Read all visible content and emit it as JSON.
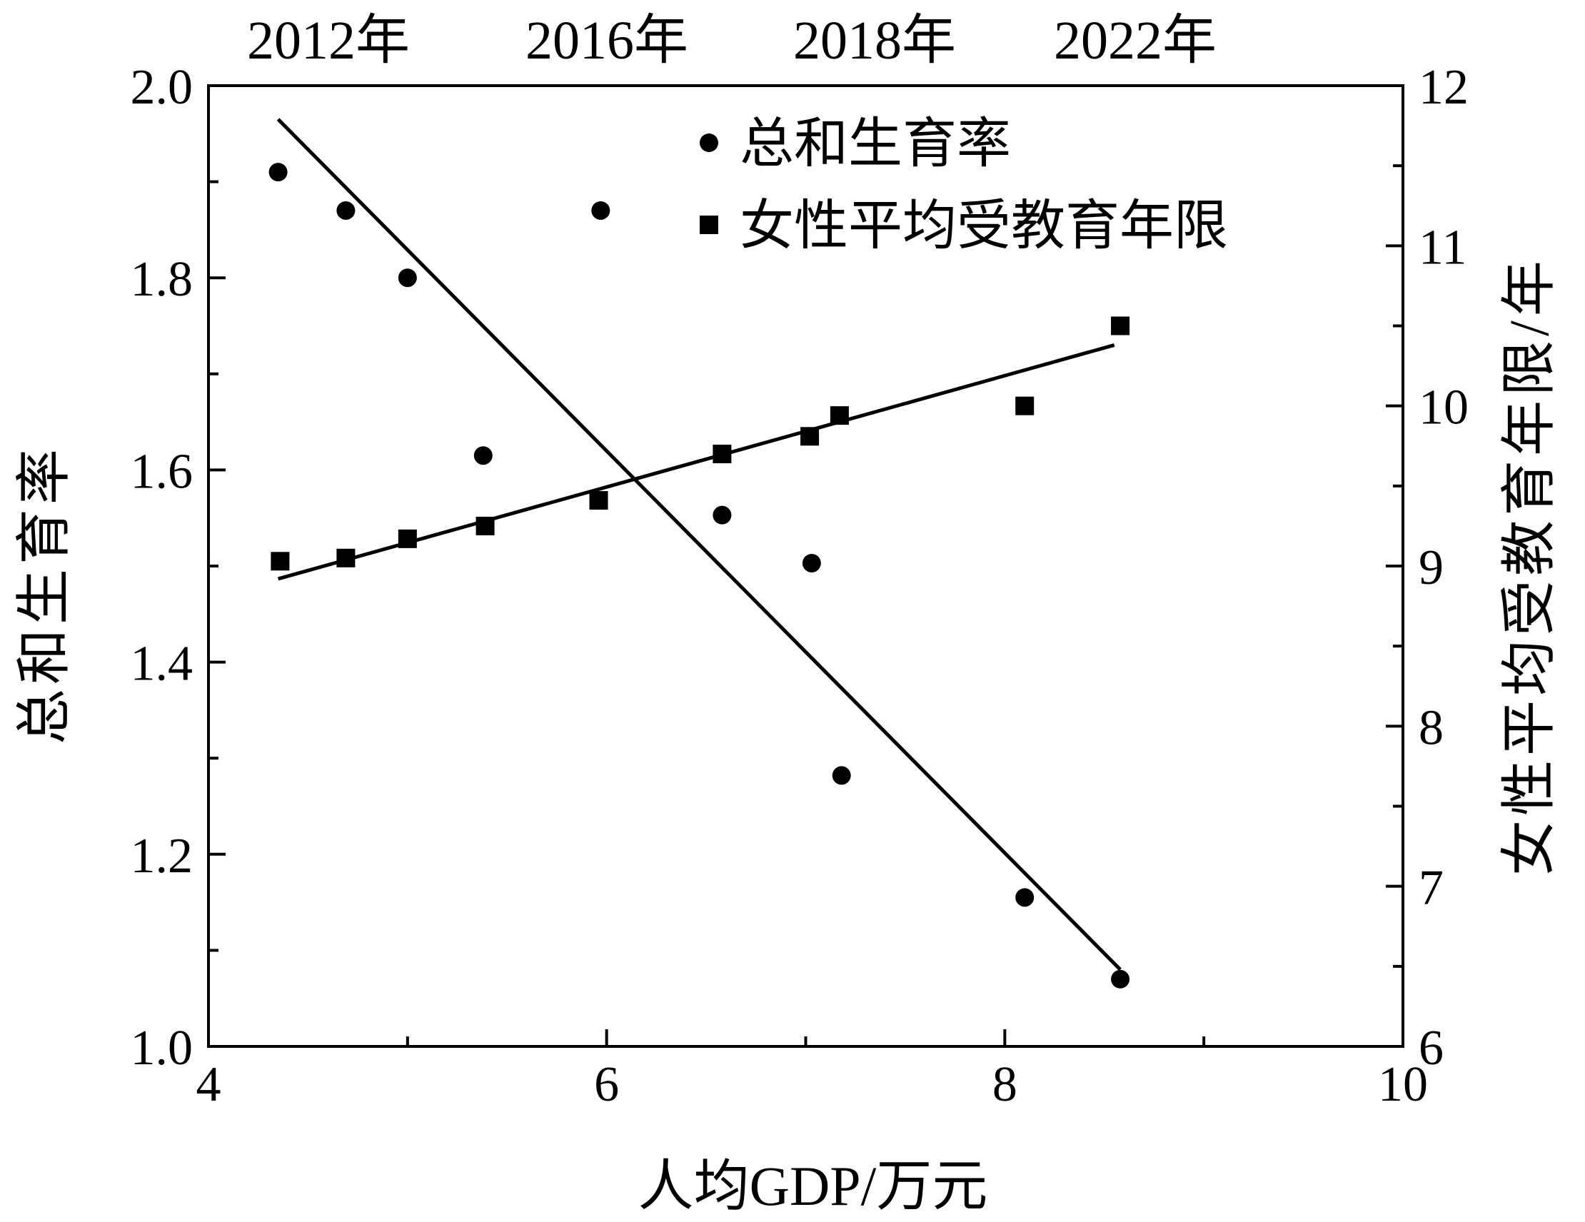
{
  "chart_data": {
    "type": "scatter",
    "title": "",
    "top_labels": [
      "2012年",
      "2016年",
      "2018年",
      "2022年"
    ],
    "xlabel": "人均GDP/万元",
    "ylabel_left": "总和生育率",
    "ylabel_right": "女性平均受教育年限/年",
    "xlim": [
      4,
      10
    ],
    "ylim_left": [
      1.0,
      2.0
    ],
    "ylim_right": [
      6,
      12
    ],
    "x_ticks": [
      "4",
      "6",
      "8",
      "10"
    ],
    "y_left_ticks": [
      "1.0",
      "1.2",
      "1.4",
      "1.6",
      "1.8",
      "2.0"
    ],
    "y_right_ticks": [
      "6",
      "7",
      "8",
      "9",
      "10",
      "11",
      "12"
    ],
    "grid": false,
    "legend_position": "top-right",
    "series": [
      {
        "name": "总和生育率",
        "marker": "circle",
        "axis": "left",
        "points": [
          [
            4.35,
            1.91
          ],
          [
            4.69,
            1.87
          ],
          [
            5.0,
            1.8
          ],
          [
            5.38,
            1.615
          ],
          [
            5.97,
            1.87
          ],
          [
            6.58,
            1.553
          ],
          [
            7.03,
            1.503
          ],
          [
            7.18,
            1.282
          ],
          [
            8.1,
            1.155
          ],
          [
            8.58,
            1.07
          ]
        ],
        "trendline": {
          "x": [
            4.35,
            8.58
          ],
          "y": [
            1.965,
            1.08
          ]
        }
      },
      {
        "name": "女性平均受教育年限",
        "marker": "square",
        "axis": "right",
        "points": [
          [
            4.36,
            9.03
          ],
          [
            4.69,
            9.05
          ],
          [
            5.0,
            9.17
          ],
          [
            5.39,
            9.25
          ],
          [
            5.96,
            9.41
          ],
          [
            6.58,
            9.7
          ],
          [
            7.02,
            9.81
          ],
          [
            7.17,
            9.94
          ],
          [
            8.1,
            10.0
          ],
          [
            8.58,
            10.5
          ]
        ],
        "trendline": {
          "x": [
            4.35,
            8.55
          ],
          "y": [
            8.92,
            10.38
          ]
        }
      }
    ]
  }
}
